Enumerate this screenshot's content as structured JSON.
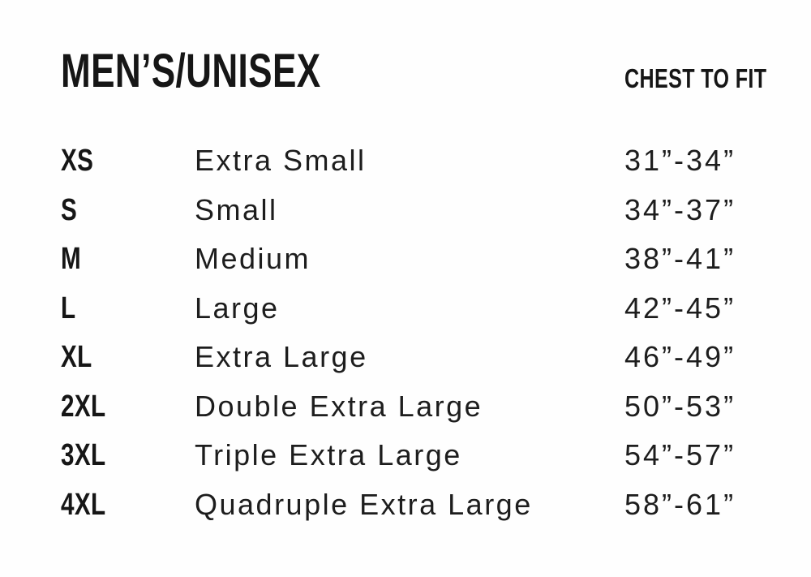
{
  "meta": {
    "background_color": "#fefefe",
    "text_color": "#1a1a1a"
  },
  "header": {
    "title": "MEN’S/UNISEX",
    "fit_column_label": "CHEST TO FIT"
  },
  "chart_data": {
    "type": "table",
    "title": "MEN’S/UNISEX",
    "columns": [
      "size_code",
      "size_name",
      "chest_to_fit"
    ],
    "column_headers": [
      "",
      "",
      "CHEST TO FIT"
    ],
    "rows": [
      {
        "size_code": "XS",
        "size_name": "Extra Small",
        "chest_to_fit": "31”-34”"
      },
      {
        "size_code": "S",
        "size_name": "Small",
        "chest_to_fit": "34”-37”"
      },
      {
        "size_code": "M",
        "size_name": "Medium",
        "chest_to_fit": "38”-41”"
      },
      {
        "size_code": "L",
        "size_name": "Large",
        "chest_to_fit": "42”-45”"
      },
      {
        "size_code": "XL",
        "size_name": "Extra Large",
        "chest_to_fit": "46”-49”"
      },
      {
        "size_code": "2XL",
        "size_name": "Double Extra Large",
        "chest_to_fit": "50”-53”"
      },
      {
        "size_code": "3XL",
        "size_name": "Triple Extra Large",
        "chest_to_fit": "54”-57”"
      },
      {
        "size_code": "4XL",
        "size_name": "Quadruple Extra Large",
        "chest_to_fit": "58”-61”"
      }
    ]
  }
}
